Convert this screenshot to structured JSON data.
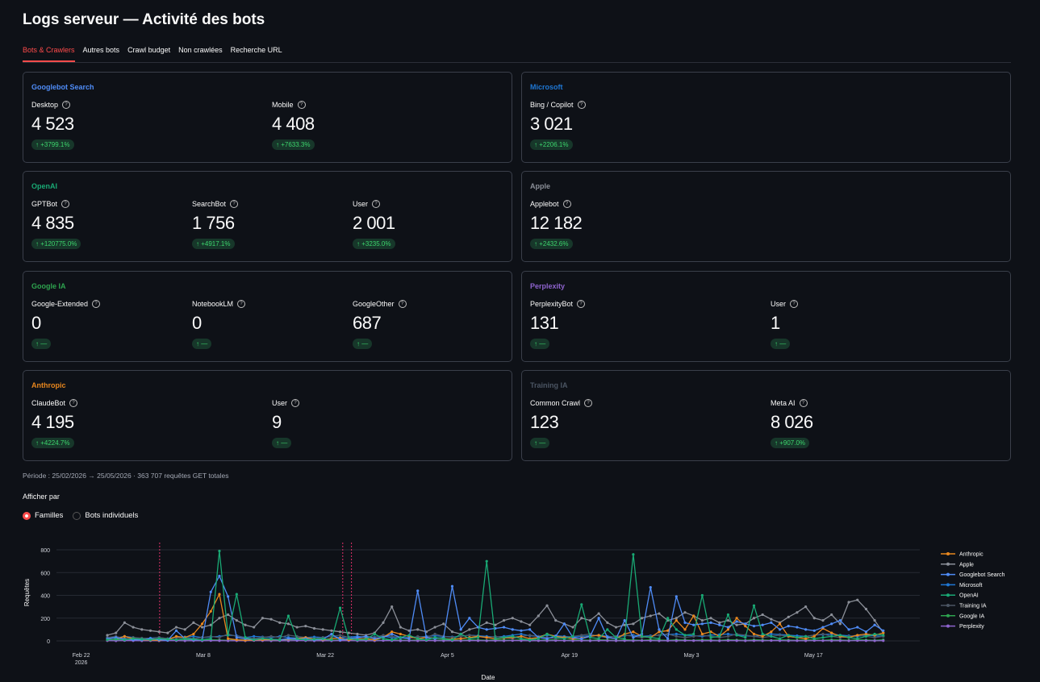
{
  "title": "Logs serveur — Activité des bots",
  "tabs": [
    "Bots & Crawlers",
    "Autres bots",
    "Crawl budget",
    "Non crawlées",
    "Recherche URL"
  ],
  "cards": {
    "googlebot": {
      "title": "Googlebot Search",
      "color": "#4f8cf7",
      "metrics": [
        {
          "label": "Desktop",
          "value": "4 523",
          "delta": "+3799.1%"
        },
        {
          "label": "Mobile",
          "value": "4 408",
          "delta": "+7633.3%"
        }
      ]
    },
    "microsoft": {
      "title": "Microsoft",
      "color": "#1f77d4",
      "metrics": [
        {
          "label": "Bing / Copilot",
          "value": "3 021",
          "delta": "+2206.1%"
        }
      ]
    },
    "openai": {
      "title": "OpenAI",
      "color": "#19a974",
      "metrics": [
        {
          "label": "GPTBot",
          "value": "4 835",
          "delta": "+120775.0%"
        },
        {
          "label": "SearchBot",
          "value": "1 756",
          "delta": "+4917.1%"
        },
        {
          "label": "User",
          "value": "2 001",
          "delta": "+3235.0%"
        }
      ]
    },
    "apple": {
      "title": "Apple",
      "color": "#8b8f98",
      "metrics": [
        {
          "label": "Applebot",
          "value": "12 182",
          "delta": "+2432.6%"
        }
      ]
    },
    "googleia": {
      "title": "Google IA",
      "color": "#2ea44f",
      "metrics": [
        {
          "label": "Google-Extended",
          "value": "0",
          "delta": "—"
        },
        {
          "label": "NotebookLM",
          "value": "0",
          "delta": "—"
        },
        {
          "label": "GoogleOther",
          "value": "687",
          "delta": "—"
        }
      ]
    },
    "perplexity": {
      "title": "Perplexity",
      "color": "#8e63ce",
      "metrics": [
        {
          "label": "PerplexityBot",
          "value": "131",
          "delta": "—"
        },
        {
          "label": "User",
          "value": "1",
          "delta": "—"
        }
      ]
    },
    "anthropic": {
      "title": "Anthropic",
      "color": "#e8871e",
      "metrics": [
        {
          "label": "ClaudeBot",
          "value": "4 195",
          "delta": "+4224.7%"
        },
        {
          "label": "User",
          "value": "9",
          "delta": "—"
        }
      ]
    },
    "training": {
      "title": "Training IA",
      "color": "#4b5563",
      "metrics": [
        {
          "label": "Common Crawl",
          "value": "123",
          "delta": "—"
        },
        {
          "label": "Meta AI",
          "value": "8 026",
          "delta": "+907.0%"
        }
      ]
    }
  },
  "period": "Période : 25/02/2026 → 25/05/2026 · 363 707 requêtes GET totales",
  "afficher_label": "Afficher par",
  "radio_options": [
    "Familles",
    "Bots individuels"
  ],
  "radio_selected": "Familles",
  "icons": {
    "help": "help-circle-icon",
    "delta_up": "arrow-up-icon"
  },
  "chart_data": {
    "type": "line",
    "xlabel": "Date",
    "ylabel": "Requêtes",
    "ylim": [
      0,
      850
    ],
    "yticks": [
      0,
      200,
      400,
      600,
      800
    ],
    "xtick_labels": [
      [
        "Feb 22",
        "2026"
      ],
      [
        "Mar 8"
      ],
      [
        "Mar 22"
      ],
      [
        "Apr 5"
      ],
      [
        "Apr 19"
      ],
      [
        "May 3"
      ],
      [
        "May 17"
      ]
    ],
    "xtick_dates": [
      "2026-02-22",
      "2026-03-08",
      "2026-03-22",
      "2026-04-05",
      "2026-04-19",
      "2026-05-03",
      "2026-05-17"
    ],
    "x_start": "2026-02-25",
    "x_end": "2026-05-25",
    "vlines": [
      "2026-03-03",
      "2026-03-24",
      "2026-03-25"
    ],
    "legend_position": "right",
    "series": [
      {
        "name": "Anthropic",
        "color": "#e8871e",
        "values": [
          10,
          15,
          40,
          20,
          10,
          8,
          5,
          10,
          40,
          30,
          60,
          150,
          260,
          410,
          20,
          10,
          5,
          8,
          10,
          12,
          10,
          15,
          20,
          30,
          15,
          10,
          20,
          25,
          10,
          15,
          20,
          10,
          30,
          80,
          60,
          40,
          20,
          30,
          25,
          20,
          15,
          20,
          30,
          40,
          30,
          20,
          25,
          30,
          40,
          20,
          30,
          60,
          40,
          30,
          20,
          25,
          40,
          50,
          30,
          20,
          60,
          80,
          40,
          30,
          80,
          90,
          180,
          100,
          220,
          60,
          80,
          40,
          100,
          200,
          130,
          60,
          40,
          80,
          150,
          40,
          30,
          20,
          40,
          110,
          70,
          40,
          30,
          50,
          60,
          50,
          70
        ]
      },
      {
        "name": "Apple",
        "color": "#8b8f98",
        "values": [
          50,
          70,
          160,
          120,
          100,
          90,
          80,
          70,
          120,
          100,
          160,
          120,
          140,
          200,
          230,
          180,
          140,
          120,
          200,
          190,
          160,
          150,
          120,
          130,
          110,
          100,
          90,
          80,
          70,
          60,
          50,
          70,
          160,
          300,
          120,
          90,
          100,
          80,
          120,
          150,
          80,
          60,
          100,
          120,
          160,
          140,
          180,
          200,
          170,
          140,
          220,
          310,
          180,
          150,
          120,
          200,
          180,
          240,
          160,
          120,
          140,
          150,
          200,
          220,
          240,
          180,
          200,
          250,
          220,
          180,
          200,
          160,
          180,
          140,
          150,
          200,
          230,
          190,
          160,
          210,
          250,
          300,
          200,
          180,
          230,
          150,
          340,
          360,
          280,
          180,
          70
        ]
      },
      {
        "name": "Googlebot Search",
        "color": "#4f8cf7",
        "values": [
          20,
          30,
          15,
          10,
          10,
          20,
          10,
          5,
          90,
          20,
          10,
          10,
          430,
          570,
          390,
          30,
          20,
          10,
          20,
          15,
          10,
          20,
          15,
          20,
          10,
          15,
          60,
          10,
          20,
          30,
          40,
          20,
          30,
          60,
          30,
          20,
          440,
          30,
          20,
          30,
          480,
          100,
          200,
          120,
          100,
          110,
          120,
          100,
          90,
          100,
          30,
          20,
          40,
          150,
          30,
          20,
          40,
          200,
          30,
          20,
          180,
          30,
          60,
          470,
          100,
          20,
          390,
          160,
          140,
          150,
          160,
          140,
          120,
          170,
          150,
          130,
          140,
          160,
          100,
          130,
          120,
          100,
          90,
          120,
          150,
          180,
          100,
          120,
          80,
          140,
          90
        ]
      },
      {
        "name": "Microsoft",
        "color": "#1f77d4",
        "values": [
          30,
          25,
          40,
          30,
          20,
          25,
          30,
          20,
          30,
          35,
          40,
          30,
          35,
          40,
          50,
          45,
          30,
          40,
          35,
          30,
          40,
          30,
          25,
          30,
          35,
          30,
          40,
          30,
          35,
          40,
          30,
          35,
          40,
          30,
          25,
          30,
          35,
          40,
          45,
          40,
          35,
          40,
          50,
          45,
          40,
          35,
          40,
          50,
          60,
          45,
          40,
          50,
          45,
          40,
          35,
          40,
          45,
          50,
          40,
          35,
          45,
          50,
          40,
          45,
          50,
          55,
          60,
          50,
          45,
          40,
          50,
          55,
          60,
          50,
          45,
          40,
          50,
          60,
          55,
          50,
          45,
          40,
          50,
          55,
          60,
          50,
          45,
          40,
          50,
          45,
          40
        ]
      },
      {
        "name": "OpenAI",
        "color": "#19a974",
        "values": [
          10,
          15,
          10,
          20,
          15,
          10,
          20,
          15,
          10,
          20,
          15,
          10,
          20,
          790,
          50,
          410,
          30,
          10,
          20,
          15,
          10,
          220,
          20,
          10,
          15,
          20,
          10,
          290,
          20,
          10,
          15,
          60,
          20,
          10,
          30,
          50,
          20,
          10,
          30,
          20,
          10,
          60,
          20,
          30,
          700,
          20,
          30,
          40,
          20,
          10,
          20,
          60,
          30,
          20,
          40,
          320,
          30,
          20,
          100,
          30,
          20,
          760,
          40,
          30,
          20,
          200,
          100,
          50,
          60,
          400,
          30,
          40,
          230,
          50,
          30,
          310,
          60,
          40,
          20,
          50,
          30,
          40,
          20,
          30,
          40,
          50,
          30,
          20,
          40,
          60,
          50
        ]
      },
      {
        "name": "Training IA",
        "color": "#4b5563",
        "values": [
          30,
          40,
          20,
          30,
          25,
          20,
          30,
          20,
          25,
          30,
          20,
          30,
          40,
          30,
          60,
          40,
          30,
          20,
          30,
          40,
          30,
          50,
          40,
          30,
          20,
          30,
          40,
          50,
          30,
          20,
          40,
          30,
          50,
          40,
          30,
          20,
          40,
          30,
          60,
          40,
          30,
          40,
          50,
          40,
          30,
          40,
          30,
          20,
          40,
          50,
          40,
          30,
          20,
          30,
          40,
          50,
          60,
          40,
          30,
          40,
          50,
          40,
          30,
          40,
          50,
          60,
          40,
          30,
          40,
          50,
          40,
          30,
          40,
          60,
          50,
          40,
          30,
          40,
          50,
          40,
          30,
          40,
          50,
          60,
          40,
          30,
          40,
          50,
          40,
          30,
          40
        ]
      },
      {
        "name": "Google IA",
        "color": "#2ea44f",
        "values": [
          5,
          10,
          5,
          8,
          10,
          5,
          10,
          8,
          5,
          10,
          8,
          5,
          10,
          8,
          5,
          10,
          8,
          5,
          10,
          8,
          5,
          10,
          8,
          5,
          10,
          8,
          5,
          10,
          8,
          5,
          10,
          8,
          5,
          10,
          8,
          5,
          10,
          8,
          5,
          10,
          8,
          5,
          10,
          8,
          5,
          10,
          8,
          5,
          10,
          8,
          5,
          10,
          8,
          5,
          10,
          8,
          5,
          10,
          8,
          5,
          10,
          8,
          5,
          10,
          8,
          5,
          10,
          8,
          5,
          10,
          8,
          5,
          10,
          8,
          5,
          10,
          8,
          5,
          10,
          8,
          5,
          10,
          8,
          5,
          10,
          8,
          5,
          10,
          8,
          5,
          10
        ]
      },
      {
        "name": "Perplexity",
        "color": "#8e63ce",
        "values": [
          2,
          1,
          3,
          2,
          1,
          2,
          1,
          3,
          2,
          1,
          2,
          1,
          3,
          2,
          1,
          2,
          1,
          3,
          2,
          1,
          2,
          1,
          3,
          2,
          1,
          2,
          1,
          3,
          2,
          1,
          2,
          1,
          3,
          2,
          1,
          2,
          1,
          3,
          2,
          1,
          2,
          1,
          3,
          2,
          1,
          2,
          1,
          3,
          2,
          1,
          2,
          1,
          3,
          2,
          1,
          2,
          1,
          3,
          2,
          1,
          2,
          1,
          3,
          2,
          1,
          2,
          1,
          3,
          2,
          1,
          2,
          1,
          3,
          2,
          1,
          2,
          1,
          3,
          2,
          1,
          2,
          1,
          3,
          2,
          1,
          2,
          1,
          3,
          2,
          1,
          2
        ]
      }
    ]
  }
}
